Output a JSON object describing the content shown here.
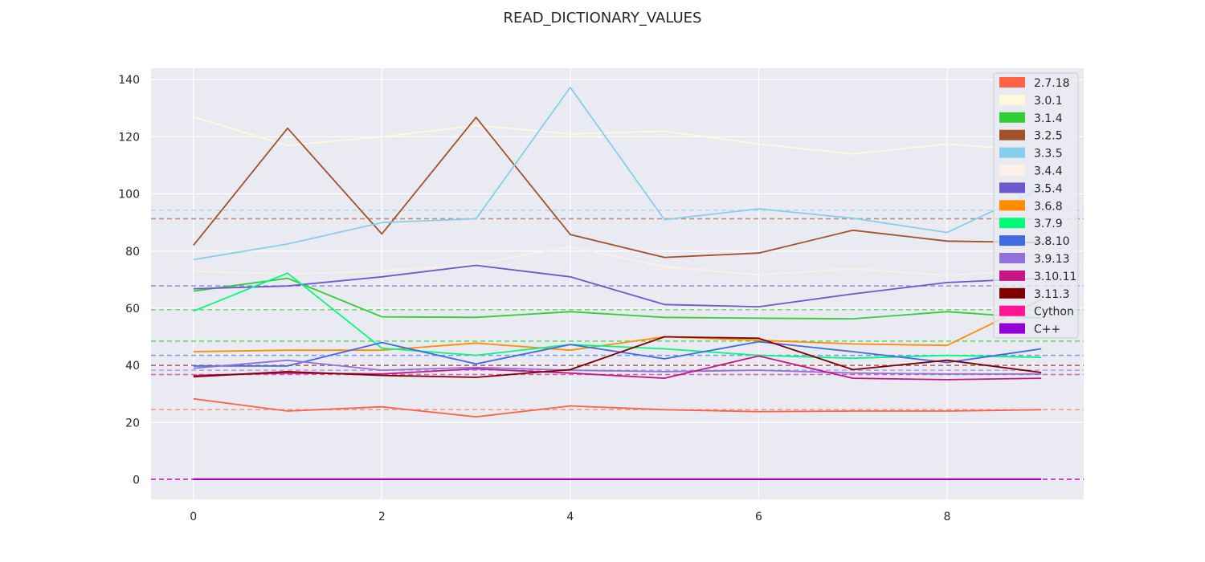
{
  "chart_data": {
    "type": "line",
    "title": "READ_DICTIONARY_VALUES",
    "xlabel": "",
    "ylabel": "",
    "xlim": [
      -0.45,
      9.45
    ],
    "ylim": [
      -6.9,
      144
    ],
    "xticks": [
      0,
      2,
      4,
      6,
      8
    ],
    "yticks": [
      0,
      20,
      40,
      60,
      80,
      100,
      120,
      140
    ],
    "x": [
      0,
      1,
      2,
      3,
      4,
      5,
      6,
      7,
      8,
      9
    ],
    "grid": true,
    "background": "#eaeaf2",
    "legend_position": "top-right",
    "series": [
      {
        "name": "2.7.18",
        "color": "#ff6347",
        "values": [
          28.3,
          24.0,
          25.5,
          22.0,
          25.8,
          24.5,
          23.8,
          24.0,
          24.0,
          24.5
        ],
        "mean": 24.5
      },
      {
        "name": "3.0.1",
        "color": "#fff8dc",
        "values": [
          127.0,
          117.0,
          120.0,
          124.0,
          121.0,
          122.0,
          117.5,
          114.0,
          117.5,
          115.0
        ],
        "mean": 120.0
      },
      {
        "name": "3.1.4",
        "color": "#32cd32",
        "values": [
          66.0,
          70.5,
          57.0,
          56.8,
          58.8,
          56.8,
          56.5,
          56.3,
          58.8,
          56.5
        ],
        "mean": 59.5
      },
      {
        "name": "3.2.5",
        "color": "#a0522d",
        "values": [
          82.0,
          123.0,
          86.0,
          126.8,
          85.8,
          77.8,
          79.3,
          87.3,
          83.5,
          83.0
        ],
        "mean": 91.3
      },
      {
        "name": "3.3.5",
        "color": "#87ceeb",
        "values": [
          77.0,
          82.5,
          90.0,
          91.3,
          137.3,
          91.0,
          94.8,
          91.5,
          86.5,
          102.0
        ],
        "mean": 94.3
      },
      {
        "name": "3.4.4",
        "color": "#fdf0e6",
        "values": [
          73.0,
          72.0,
          73.0,
          75.5,
          81.5,
          74.5,
          71.7,
          73.8,
          71.5,
          73.5
        ],
        "mean": 73.8
      },
      {
        "name": "3.5.4",
        "color": "#6a5acd",
        "values": [
          66.8,
          67.8,
          71.0,
          75.0,
          71.0,
          61.3,
          60.5,
          65.0,
          69.0,
          70.5
        ],
        "mean": 67.8
      },
      {
        "name": "3.6.8",
        "color": "#ff8c00",
        "values": [
          44.8,
          45.3,
          45.3,
          47.8,
          45.3,
          50.0,
          48.8,
          47.5,
          47.0,
          63.0
        ],
        "mean": 48.5
      },
      {
        "name": "3.7.9",
        "color": "#00fa7a",
        "values": [
          59.0,
          72.3,
          46.0,
          43.5,
          47.3,
          45.8,
          43.5,
          42.5,
          43.5,
          42.8
        ],
        "mean": 48.5
      },
      {
        "name": "3.8.10",
        "color": "#4169e1",
        "values": [
          39.8,
          39.8,
          48.0,
          40.5,
          47.3,
          42.3,
          48.3,
          44.8,
          41.0,
          45.8
        ],
        "mean": 43.5
      },
      {
        "name": "3.9.13",
        "color": "#9370db",
        "values": [
          39.0,
          41.8,
          38.3,
          39.3,
          38.3,
          37.8,
          38.3,
          37.3,
          37.0,
          37.0
        ],
        "mean": 38.3
      },
      {
        "name": "3.10.11",
        "color": "#c71585",
        "values": [
          36.5,
          37.3,
          37.0,
          38.8,
          37.3,
          35.5,
          43.3,
          35.5,
          35.0,
          35.5
        ],
        "mean": 36.8
      },
      {
        "name": "3.11.3",
        "color": "#800000",
        "values": [
          36.0,
          37.8,
          36.5,
          35.8,
          38.5,
          50.0,
          49.5,
          38.5,
          41.8,
          37.5
        ],
        "mean": 40.0
      },
      {
        "name": "Cython",
        "color": "#ff1493",
        "values": [
          0.2,
          0.2,
          0.2,
          0.2,
          0.2,
          0.2,
          0.2,
          0.2,
          0.2,
          0.2
        ],
        "mean": 0.2
      },
      {
        "name": "C++",
        "color": "#9400d3",
        "values": [
          0.1,
          0.1,
          0.1,
          0.1,
          0.1,
          0.1,
          0.1,
          0.1,
          0.1,
          0.1
        ],
        "mean": 0.1
      }
    ]
  }
}
